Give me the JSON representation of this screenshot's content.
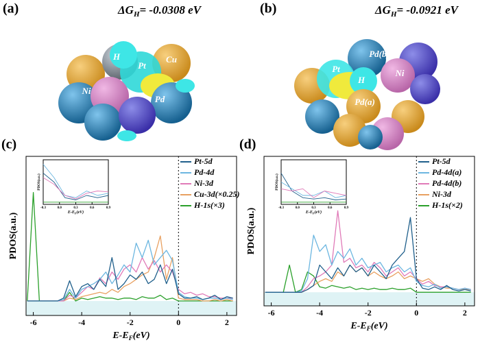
{
  "panels": [
    {
      "label": "(a)",
      "dg": "ΔG",
      "dg_sub": "H",
      "dg_value": "= -0.0308 eV",
      "atoms": [
        "H",
        "Pt",
        "Cu",
        "Ni",
        "Pd"
      ]
    },
    {
      "label": "(b)",
      "dg": "ΔG",
      "dg_sub": "H",
      "dg_value": "= -0.0921 eV",
      "atoms": [
        "Pd(b)",
        "Pt",
        "Ni",
        "H",
        "Pd(a)"
      ]
    }
  ],
  "chart_data": [
    {
      "type": "line",
      "label": "(c)",
      "ylabel": "PDOS(a.u.)",
      "xlabel": "E-E",
      "xlabel_sub": "F",
      "xlabel_unit": "(eV)",
      "xlim": [
        -6.3,
        2.4
      ],
      "ylim": [
        -0.1,
        1
      ],
      "xticks": [
        -6,
        -4,
        -2,
        0,
        2
      ],
      "x": [
        -6.25,
        -6,
        -5.75,
        -5.5,
        -5.25,
        -5,
        -4.75,
        -4.5,
        -4.25,
        -4,
        -3.75,
        -3.5,
        -3.25,
        -3,
        -2.75,
        -2.5,
        -2.25,
        -2,
        -1.75,
        -1.5,
        -1.25,
        -1,
        -0.75,
        -0.5,
        -0.25,
        0,
        0.25,
        0.5,
        0.75,
        1,
        1.25,
        1.5,
        1.75,
        2,
        2.25
      ],
      "series": [
        {
          "name": "Pt-5d",
          "color": "#1f5f8b",
          "values": [
            0,
            0,
            0,
            0,
            0,
            0,
            0.02,
            0.14,
            0.03,
            0.1,
            0.12,
            0.08,
            0.15,
            0.1,
            0.3,
            0.08,
            0.12,
            0.18,
            0.15,
            0.2,
            0.12,
            0.15,
            0.25,
            0.12,
            0.22,
            0.05,
            0.02,
            0.02,
            0.03,
            0.01,
            0.02,
            0.04,
            0.01,
            0.03,
            0.02
          ]
        },
        {
          "name": "Pd-4d",
          "color": "#6bb6e0",
          "values": [
            0,
            0,
            0,
            0,
            0,
            0,
            0.01,
            0.08,
            0.02,
            0.08,
            0.1,
            0.12,
            0.15,
            0.2,
            0.12,
            0.18,
            0.25,
            0.2,
            0.4,
            0.3,
            0.42,
            0.25,
            0.3,
            0.35,
            0.28,
            0.06,
            0.03,
            0.02,
            0.02,
            0.01,
            0.02,
            0.02,
            0.01,
            0.02,
            0.01
          ]
        },
        {
          "name": "Ni-3d",
          "color": "#e07ab8",
          "values": [
            0,
            0,
            0,
            0,
            0,
            0,
            0,
            0.04,
            0.02,
            0.06,
            0.1,
            0.08,
            0.16,
            0.12,
            0.2,
            0.15,
            0.22,
            0.25,
            0.2,
            0.3,
            0.22,
            0.28,
            0.2,
            0.25,
            0.2,
            0.08,
            0.05,
            0.06,
            0.04,
            0.05,
            0.03,
            0.03,
            0.02,
            0.02,
            0.02
          ]
        },
        {
          "name": "Cu-3d(×0.25)",
          "color": "#e8a060",
          "values": [
            0,
            0,
            0,
            0,
            0,
            0,
            0,
            0.02,
            0.01,
            0.03,
            0.04,
            0.05,
            0.06,
            0.05,
            0.08,
            0.06,
            0.1,
            0.12,
            0.15,
            0.18,
            0.2,
            0.3,
            0.45,
            0.15,
            0.3,
            0.02,
            0.01,
            0.01,
            0.01,
            0,
            0,
            0.01,
            0,
            0.01,
            0
          ]
        },
        {
          "name": "H-1s(×3)",
          "color": "#2aa02a",
          "values": [
            0,
            0.75,
            0,
            0,
            0,
            0,
            0,
            0.06,
            0,
            0.02,
            0.01,
            0.02,
            0.03,
            0.02,
            0.02,
            0.01,
            0.02,
            0.02,
            0.01,
            0.03,
            0.02,
            0.02,
            0.04,
            0.01,
            0.02,
            0,
            0,
            0,
            0,
            0,
            0,
            0,
            0,
            0,
            0
          ]
        }
      ],
      "inset": {
        "ylabel": "PDOS(a.u.)",
        "xlabel": "E-E",
        "xlabel_sub": "F",
        "xlabel_unit": "(eV)",
        "xlim": [
          -0.3,
          0.9
        ],
        "ylim": [
          0,
          1
        ],
        "xticks": [
          -0.3,
          {
            "value": 0,
            "label": "0.0"
          },
          0.3,
          0.6,
          0.9
        ],
        "x": [
          -0.3,
          -0.1,
          0.1,
          0.3,
          0.5,
          0.7,
          0.9
        ],
        "series": [
          {
            "color": "#6bb6e0",
            "values": [
              0.9,
              0.6,
              0.2,
              0.15,
              0.3,
              0.2,
              0.25
            ]
          },
          {
            "color": "#1f5f8b",
            "values": [
              0.7,
              0.5,
              0.15,
              0.1,
              0.2,
              0.15,
              0.2
            ]
          },
          {
            "color": "#e07ab8",
            "values": [
              0.6,
              0.45,
              0.2,
              0.12,
              0.25,
              0.3,
              0.28
            ]
          },
          {
            "color": "#2aa02a",
            "values": [
              0.05,
              0.05,
              0.05,
              0.05,
              0.05,
              0.05,
              0.05
            ]
          }
        ]
      }
    },
    {
      "type": "line",
      "label": "(d)",
      "ylabel": "PDOS(a.u.)",
      "xlabel": "E-E",
      "xlabel_sub": "F",
      "xlabel_unit": "(eV)",
      "xlim": [
        -6.3,
        2.4
      ],
      "ylim": [
        -0.1,
        1
      ],
      "xticks": [
        -6,
        -4,
        -2,
        0,
        2
      ],
      "x": [
        -6.25,
        -6,
        -5.75,
        -5.5,
        -5.25,
        -5,
        -4.75,
        -4.5,
        -4.25,
        -4,
        -3.75,
        -3.5,
        -3.25,
        -3,
        -2.75,
        -2.5,
        -2.25,
        -2,
        -1.75,
        -1.5,
        -1.25,
        -1,
        -0.75,
        -0.5,
        -0.25,
        0,
        0.25,
        0.5,
        0.75,
        1,
        1.25,
        1.5,
        1.75,
        2,
        2.25
      ],
      "series": [
        {
          "name": "Pt-5d",
          "color": "#1f5f8b",
          "values": [
            0,
            0,
            0,
            0,
            0,
            0,
            0,
            0.02,
            0.05,
            0.2,
            0.15,
            0.1,
            0.18,
            0.12,
            0.2,
            0.15,
            0.18,
            0.12,
            0.2,
            0.15,
            0.1,
            0.2,
            0.25,
            0.3,
            0.55,
            0.1,
            0.03,
            0.02,
            0.04,
            0.02,
            0.05,
            0.02,
            0.01,
            0.02,
            0.01
          ]
        },
        {
          "name": "Pd-4d(a)",
          "color": "#6bb6e0",
          "values": [
            0,
            0,
            0,
            0,
            0,
            0,
            0.01,
            0.1,
            0.42,
            0.3,
            0.35,
            0.2,
            0.3,
            0.25,
            0.32,
            0.2,
            0.25,
            0.18,
            0.2,
            0.22,
            0.15,
            0.18,
            0.2,
            0.15,
            0.18,
            0.08,
            0.05,
            0.04,
            0.06,
            0.03,
            0.04,
            0.03,
            0.02,
            0.03,
            0.02
          ]
        },
        {
          "name": "Pd-4d(b)",
          "color": "#e07ab8",
          "values": [
            0,
            0,
            0,
            0,
            0,
            0,
            0,
            0.04,
            0.1,
            0.12,
            0.15,
            0.2,
            0.6,
            0.22,
            0.25,
            0.18,
            0.2,
            0.15,
            0.22,
            0.18,
            0.12,
            0.15,
            0.18,
            0.12,
            0.15,
            0.1,
            0.06,
            0.08,
            0.05,
            0.04,
            0.04,
            0.03,
            0.02,
            0.03,
            0.02
          ]
        },
        {
          "name": "Ni-3d",
          "color": "#e8a060",
          "values": [
            0,
            0,
            0,
            0,
            0,
            0,
            0,
            0.02,
            0.05,
            0.08,
            0.1,
            0.08,
            0.15,
            0.12,
            0.2,
            0.15,
            0.18,
            0.12,
            0.15,
            0.12,
            0.1,
            0.12,
            0.15,
            0.1,
            0.12,
            0.1,
            0.08,
            0.1,
            0.06,
            0.04,
            0.03,
            0.03,
            0.02,
            0.02,
            0.02
          ]
        },
        {
          "name": "H-1s(×2)",
          "color": "#2aa02a",
          "values": [
            0,
            0,
            0,
            0,
            0.2,
            0,
            0.02,
            0.15,
            0.12,
            0.04,
            0.03,
            0.05,
            0.04,
            0.03,
            0.04,
            0.02,
            0.03,
            0.02,
            0.03,
            0.02,
            0.02,
            0.03,
            0.02,
            0.02,
            0.03,
            0,
            0,
            0,
            0,
            0,
            0,
            0,
            0,
            0,
            0
          ]
        }
      ],
      "inset": {
        "ylabel": "PDOS(a.u.)",
        "xlabel": "E-E",
        "xlabel_sub": "F",
        "xlabel_unit": "(eV)",
        "xlim": [
          -0.3,
          0.9
        ],
        "ylim": [
          0,
          1
        ],
        "xticks": [
          -0.3,
          {
            "value": 0,
            "label": "0.0"
          },
          0.3,
          0.6,
          0.9
        ],
        "x": [
          -0.3,
          -0.1,
          0.1,
          0.3,
          0.5,
          0.7,
          0.9
        ],
        "series": [
          {
            "color": "#1f5f8b",
            "values": [
              0.7,
              0.3,
              0.15,
              0.12,
              0.15,
              0.1,
              0.12
            ]
          },
          {
            "color": "#6bb6e0",
            "values": [
              0.5,
              0.35,
              0.2,
              0.2,
              0.3,
              0.15,
              0.2
            ]
          },
          {
            "color": "#e07ab8",
            "values": [
              0.35,
              0.3,
              0.35,
              0.15,
              0.3,
              0.25,
              0.2
            ]
          },
          {
            "color": "#2aa02a",
            "values": [
              0.05,
              0.05,
              0.05,
              0.05,
              0.05,
              0.05,
              0.05
            ]
          }
        ]
      }
    }
  ]
}
